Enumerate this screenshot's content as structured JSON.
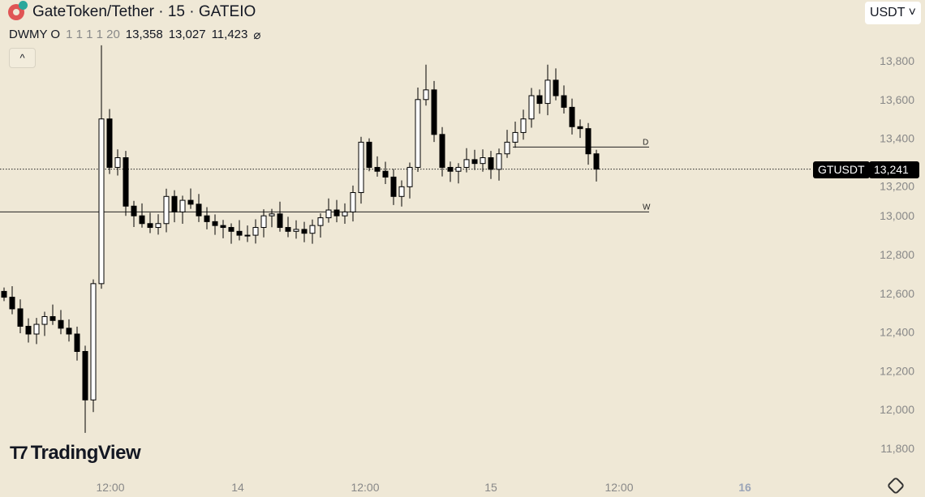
{
  "header": {
    "title": "GateToken/Tether · 15 · GATEIO",
    "ohlc_prefix": "DWMY O",
    "flags": "1 1 1 1 20",
    "v1": "13,358",
    "v2": "13,027",
    "v3": "11,423",
    "null_icon": "⌀",
    "collapse": "^"
  },
  "currency_button": "USDT ˅",
  "symbol_tag": "GTUSDT",
  "price_tag": "13,241",
  "brand": "TradingView",
  "chart_data": {
    "type": "candlestick",
    "title": "GateToken/Tether · 15 · GATEIO",
    "ylim": [
      11700,
      13900
    ],
    "y_ticks": [
      11800,
      12000,
      12200,
      12400,
      12600,
      12800,
      13000,
      13200,
      13400,
      13600,
      13800
    ],
    "y_tick_labels": [
      "11,800",
      "12,000",
      "12,200",
      "12,400",
      "12,600",
      "12,800",
      "13,000",
      "13,200",
      "13,400",
      "13,600",
      "13,800"
    ],
    "x_tick_labels": [
      "12:00",
      "14",
      "12:00",
      "15",
      "12:00",
      "16"
    ],
    "closes": [
      12580,
      12520,
      12430,
      12390,
      12440,
      12480,
      12460,
      12420,
      12390,
      12300,
      12050,
      12650,
      13500,
      13250,
      13300,
      13050,
      13000,
      12960,
      12940,
      12960,
      13100,
      13020,
      13080,
      13060,
      13000,
      12970,
      12950,
      12940,
      12920,
      12900,
      12900,
      12940,
      13000,
      13010,
      12940,
      12920,
      12930,
      12910,
      12950,
      12990,
      13030,
      13000,
      13020,
      13120,
      13380,
      13250,
      13230,
      13200,
      13100,
      13150,
      13250,
      13600,
      13650,
      13420,
      13250,
      13230,
      13250,
      13290,
      13270,
      13300,
      13240,
      13320,
      13380,
      13430,
      13500,
      13620,
      13580,
      13700,
      13620,
      13560,
      13460,
      13450,
      13320,
      13241
    ],
    "spikes": [
      {
        "i": 10,
        "low": 11880
      },
      {
        "i": 12,
        "high": 13880
      },
      {
        "i": 52,
        "high": 13780
      },
      {
        "i": 67,
        "high": 13780
      }
    ],
    "last_price": 13241,
    "levels": [
      {
        "label": "D",
        "value": 13355
      },
      {
        "label": "W",
        "value": 13020
      }
    ]
  }
}
